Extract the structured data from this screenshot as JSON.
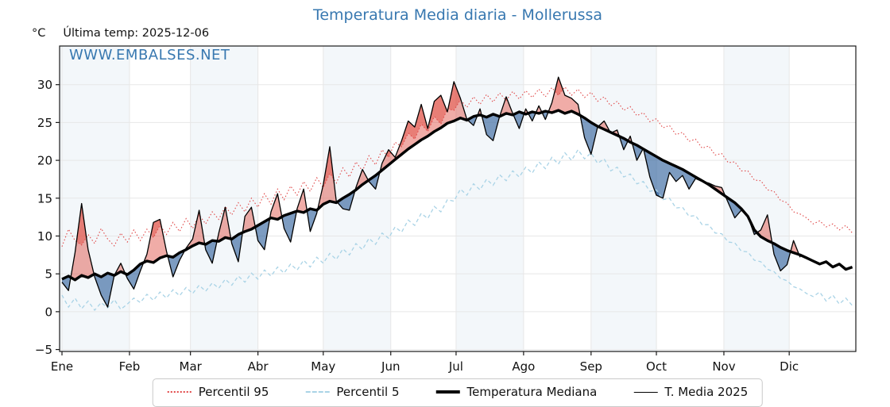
{
  "title": "Temperatura Media diaria - Mollerussa",
  "header": {
    "y_unit": "°C",
    "last_temp_label": "Última temp: 2025-12-06"
  },
  "watermark": "WWW.EMBALSES.NET",
  "legend": {
    "items": [
      {
        "label": "Percentil 95",
        "kind": "dotted"
      },
      {
        "label": "Percentil 5",
        "kind": "dashed"
      },
      {
        "label": "Temperatura Mediana",
        "kind": "solid-thick"
      },
      {
        "label": "T. Media 2025",
        "kind": "solid-thin"
      }
    ]
  },
  "colors": {
    "title": "#3878b0",
    "watermark": "#3878b0",
    "p95": "#e04848",
    "p5": "#a9d3e6",
    "median": "#000000",
    "t2025": "#000000",
    "fill_above": "rgba(222,70,60,0.45)",
    "fill_below": "rgba(45,95,155,0.62)",
    "month_band": "#f3f7fa",
    "grid": "#e7e7e7",
    "axis": "#1a1a1a",
    "text": "#111111"
  },
  "chart_data": {
    "type": "line",
    "title": "Temperatura Media diaria - Mollerussa",
    "ylabel": "°C",
    "ylim": [
      -5.3,
      35.1
    ],
    "grid": true,
    "alternate_month_shading": true,
    "legend_position": "bottom",
    "sample_interval_days": 3,
    "x_axis": {
      "months": [
        {
          "label": "Ene",
          "start_day": 0
        },
        {
          "label": "Feb",
          "start_day": 31
        },
        {
          "label": "Mar",
          "start_day": 59
        },
        {
          "label": "Abr",
          "start_day": 90
        },
        {
          "label": "May",
          "start_day": 120
        },
        {
          "label": "Jun",
          "start_day": 151
        },
        {
          "label": "Jul",
          "start_day": 181
        },
        {
          "label": "Ago",
          "start_day": 212
        },
        {
          "label": "Sep",
          "start_day": 243
        },
        {
          "label": "Oct",
          "start_day": 273
        },
        {
          "label": "Nov",
          "start_day": 304
        },
        {
          "label": "Dic",
          "start_day": 334
        }
      ],
      "days_total": 365
    },
    "y_axis": {
      "ticks": [
        {
          "v": -5,
          "label": "−5"
        },
        {
          "v": 0,
          "label": "0"
        },
        {
          "v": 5,
          "label": "5"
        },
        {
          "v": 10,
          "label": "10"
        },
        {
          "v": 15,
          "label": "15"
        },
        {
          "v": 20,
          "label": "20"
        },
        {
          "v": 25,
          "label": "25"
        },
        {
          "v": 30,
          "label": "30"
        }
      ]
    },
    "series": [
      {
        "name": "Percentil 95",
        "style": "dotted",
        "color": "#e04848",
        "start_day": 0,
        "values": [
          8.6,
          10.9,
          9.4,
          8.8,
          10.2,
          9.0,
          11.0,
          9.6,
          8.7,
          10.4,
          9.2,
          10.8,
          9.4,
          10.9,
          9.8,
          11.4,
          10.2,
          11.8,
          10.6,
          12.3,
          11.0,
          12.8,
          11.6,
          13.2,
          12.2,
          13.9,
          12.8,
          14.4,
          13.2,
          15.0,
          13.8,
          15.6,
          14.2,
          16.2,
          14.8,
          16.6,
          15.4,
          17.2,
          15.9,
          17.7,
          16.4,
          18.3,
          17.0,
          19.0,
          17.8,
          19.8,
          18.6,
          20.6,
          19.4,
          21.4,
          20.4,
          22.4,
          21.8,
          23.6,
          22.8,
          24.8,
          23.8,
          25.8,
          24.8,
          26.8,
          26.6,
          28.0,
          27.0,
          28.4,
          27.4,
          28.7,
          27.7,
          28.9,
          27.9,
          29.1,
          28.1,
          29.2,
          28.3,
          29.4,
          28.4,
          29.6,
          28.6,
          29.7,
          28.6,
          29.4,
          28.3,
          29.0,
          27.8,
          28.4,
          27.2,
          27.8,
          26.6,
          27.1,
          25.9,
          26.3,
          25.1,
          25.5,
          24.3,
          24.6,
          23.4,
          23.7,
          22.5,
          22.8,
          21.6,
          21.9,
          20.7,
          20.9,
          19.7,
          19.8,
          18.6,
          18.6,
          17.4,
          17.3,
          16.1,
          15.9,
          14.7,
          14.4,
          13.2,
          12.9,
          12.4,
          11.6,
          12.0,
          11.2,
          11.6,
          10.8,
          11.4,
          10.4
        ]
      },
      {
        "name": "Percentil 5",
        "style": "dashed",
        "color": "#a9d3e6",
        "start_day": 0,
        "values": [
          2.2,
          0.6,
          1.8,
          0.4,
          1.4,
          0.2,
          1.2,
          0.5,
          1.6,
          0.3,
          1.0,
          1.8,
          1.2,
          2.3,
          1.5,
          2.6,
          1.8,
          2.9,
          2.1,
          3.2,
          2.4,
          3.5,
          2.7,
          3.8,
          3.1,
          4.3,
          3.5,
          4.7,
          3.9,
          5.1,
          4.3,
          5.5,
          4.7,
          5.9,
          5.1,
          6.3,
          5.5,
          6.8,
          5.9,
          7.2,
          6.4,
          7.7,
          6.9,
          8.3,
          7.5,
          9.0,
          8.2,
          9.7,
          8.9,
          10.4,
          9.7,
          11.2,
          10.5,
          12.1,
          11.4,
          13.0,
          12.3,
          13.9,
          13.2,
          14.8,
          14.6,
          16.2,
          15.4,
          16.9,
          16.1,
          17.5,
          16.7,
          18.1,
          17.3,
          18.6,
          17.8,
          19.1,
          18.3,
          19.8,
          18.9,
          20.4,
          19.5,
          21.0,
          20.0,
          21.4,
          20.2,
          21.0,
          19.6,
          20.2,
          18.6,
          19.1,
          17.8,
          18.2,
          16.9,
          17.2,
          15.9,
          16.1,
          14.8,
          15.0,
          13.7,
          13.8,
          12.6,
          12.7,
          11.5,
          11.5,
          10.4,
          10.3,
          9.2,
          9.1,
          8.0,
          7.9,
          6.8,
          6.6,
          5.6,
          5.3,
          4.4,
          4.1,
          3.3,
          3.0,
          2.4,
          2.0,
          2.6,
          1.4,
          2.2,
          1.0,
          1.8,
          0.8
        ]
      },
      {
        "name": "Temperatura Mediana",
        "style": "solid-thick",
        "color": "#000000",
        "start_day": 0,
        "values": [
          4.3,
          4.7,
          4.2,
          4.8,
          4.5,
          5.0,
          4.6,
          5.1,
          4.8,
          5.3,
          4.9,
          5.5,
          6.3,
          6.7,
          6.5,
          7.1,
          7.4,
          7.2,
          7.8,
          8.2,
          8.7,
          9.1,
          8.9,
          9.4,
          9.3,
          9.8,
          9.6,
          10.2,
          10.6,
          10.9,
          11.4,
          11.9,
          12.4,
          12.2,
          12.7,
          13.0,
          13.3,
          13.1,
          13.6,
          13.4,
          14.2,
          14.6,
          14.4,
          15.0,
          15.5,
          16.1,
          16.8,
          17.4,
          18.0,
          18.7,
          19.4,
          20.1,
          20.8,
          21.5,
          22.1,
          22.7,
          23.2,
          23.8,
          24.3,
          24.9,
          25.2,
          25.6,
          25.3,
          25.8,
          26.0,
          25.7,
          26.1,
          25.8,
          26.2,
          26.0,
          26.4,
          26.1,
          26.4,
          26.2,
          26.5,
          26.3,
          26.6,
          26.2,
          26.5,
          26.1,
          25.6,
          25.0,
          24.5,
          24.1,
          23.7,
          23.3,
          22.9,
          22.4,
          22.0,
          21.5,
          21.0,
          20.5,
          20.0,
          19.6,
          19.2,
          18.8,
          18.3,
          17.8,
          17.3,
          16.8,
          16.2,
          15.6,
          15.0,
          14.4,
          13.6,
          12.6,
          10.8,
          9.9,
          9.4,
          9.0,
          8.5,
          8.1,
          7.8,
          7.5,
          7.1,
          6.7,
          6.3,
          6.6,
          5.9,
          6.3,
          5.6,
          5.9
        ]
      },
      {
        "name": "T. Media 2025",
        "style": "solid-thin",
        "color": "#000000",
        "start_day": 0,
        "last_date": "2025-12-06",
        "values": [
          3.9,
          2.8,
          7.8,
          14.3,
          8.2,
          4.6,
          2.2,
          0.6,
          4.8,
          6.4,
          4.4,
          3.0,
          5.4,
          7.6,
          11.8,
          12.2,
          8.0,
          4.6,
          6.8,
          8.4,
          9.6,
          13.4,
          8.2,
          6.4,
          10.4,
          13.8,
          9.0,
          6.6,
          12.6,
          13.8,
          9.4,
          8.2,
          13.2,
          15.6,
          11.0,
          9.2,
          13.6,
          16.2,
          10.6,
          13.0,
          16.8,
          21.8,
          14.6,
          13.6,
          13.4,
          16.4,
          18.8,
          17.2,
          16.2,
          19.6,
          21.4,
          20.4,
          22.6,
          25.2,
          24.4,
          27.4,
          24.2,
          27.8,
          28.6,
          26.4,
          30.4,
          28.2,
          25.4,
          24.6,
          26.8,
          23.4,
          22.6,
          25.8,
          28.4,
          26.2,
          24.2,
          26.8,
          25.2,
          27.2,
          25.4,
          27.6,
          31.0,
          28.6,
          28.2,
          27.4,
          23.0,
          20.8,
          24.4,
          25.2,
          23.6,
          24.0,
          21.4,
          23.2,
          20.0,
          21.6,
          17.8,
          15.4,
          15.0,
          18.4,
          17.2,
          18.0,
          16.2,
          17.6,
          17.2,
          17.0,
          16.6,
          16.4,
          14.4,
          12.4,
          13.4,
          12.6,
          10.2,
          10.8,
          12.8,
          7.6,
          5.4,
          6.2,
          9.4,
          7.2
        ]
      }
    ],
    "fills": {
      "between": [
        "T. Media 2025",
        "Temperatura Mediana"
      ],
      "above_color": "rgba(222,70,60,0.45)",
      "below_color": "rgba(45,95,155,0.62)",
      "extra_above_beyond": "Percentil 95",
      "extra_below_beyond": "Percentil 5"
    }
  }
}
